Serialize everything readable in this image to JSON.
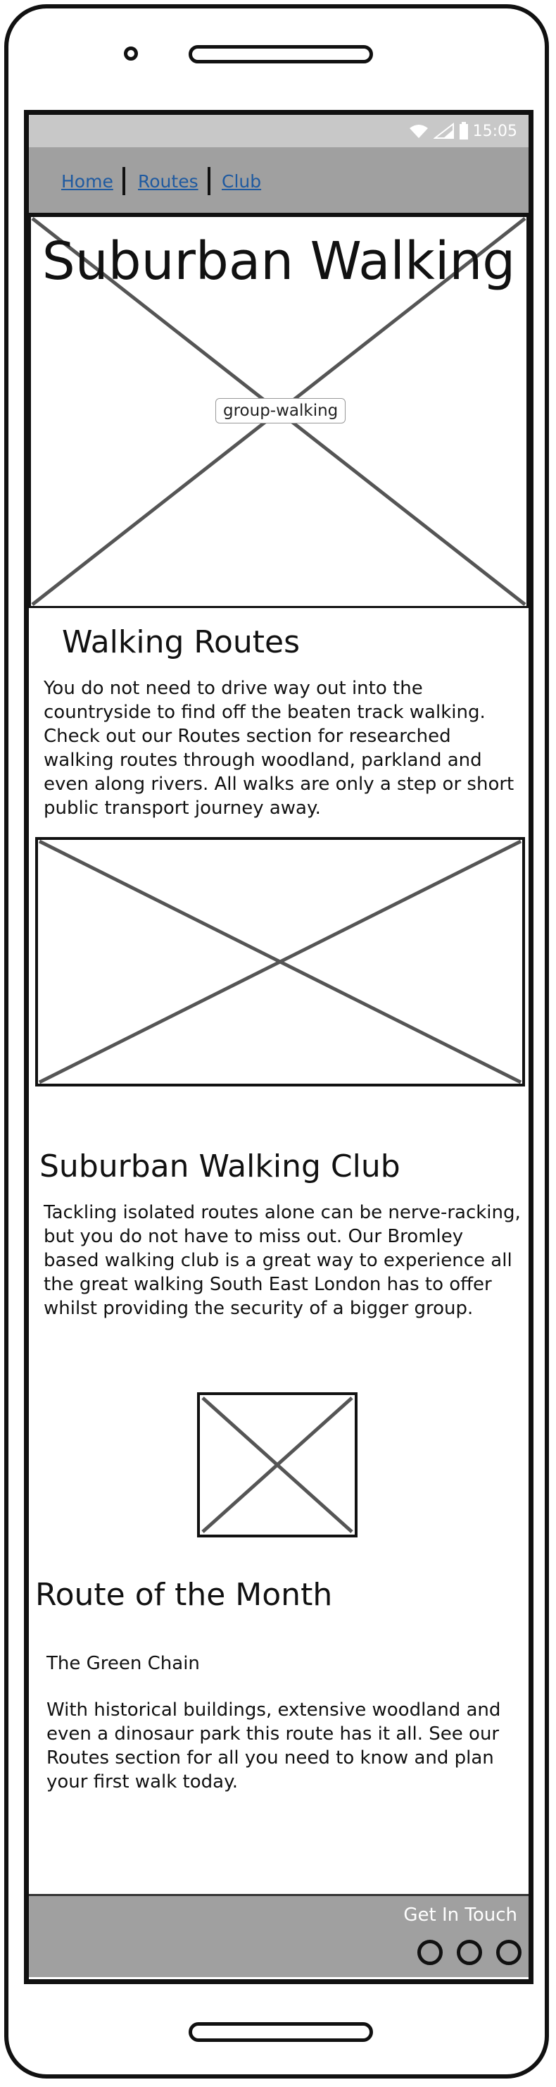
{
  "status_bar": {
    "time": "15:05",
    "icons": [
      "wifi-icon",
      "signal-icon",
      "battery-icon"
    ]
  },
  "nav": {
    "items": [
      {
        "label": "Home"
      },
      {
        "label": "Routes"
      },
      {
        "label": "Club"
      }
    ]
  },
  "hero": {
    "title": "Suburban Walking",
    "image_caption": "group-walking"
  },
  "walking_routes": {
    "heading": "Walking Routes",
    "text": "You do not need to drive way out into the countryside to find off the beaten track walking. Check out our Routes section for researched walking routes through woodland, parkland and even along rivers. All walks are only a step or short public transport journey away."
  },
  "club": {
    "heading": "Suburban Walking Club",
    "text": "Tackling isolated routes alone can be nerve-racking, but you do not have to miss out. Our Bromley based walking club is a great way to experience all the great walking South East London has to offer whilst providing the security of a bigger group."
  },
  "route_of_month": {
    "heading": "Route of the Month",
    "route_name": "The Green Chain",
    "text": "With historical buildings, extensive woodland and even a dinosaur park this route has it all. See our Routes section for all you need to know and plan your first walk today."
  },
  "footer": {
    "title": "Get In Touch",
    "social_icons": [
      "social-icon-1",
      "social-icon-2",
      "social-icon-3"
    ]
  },
  "colors": {
    "bar_gray": "#a0a0a0",
    "status_gray": "#c8c8c8",
    "link_blue": "#1f5aa0"
  }
}
